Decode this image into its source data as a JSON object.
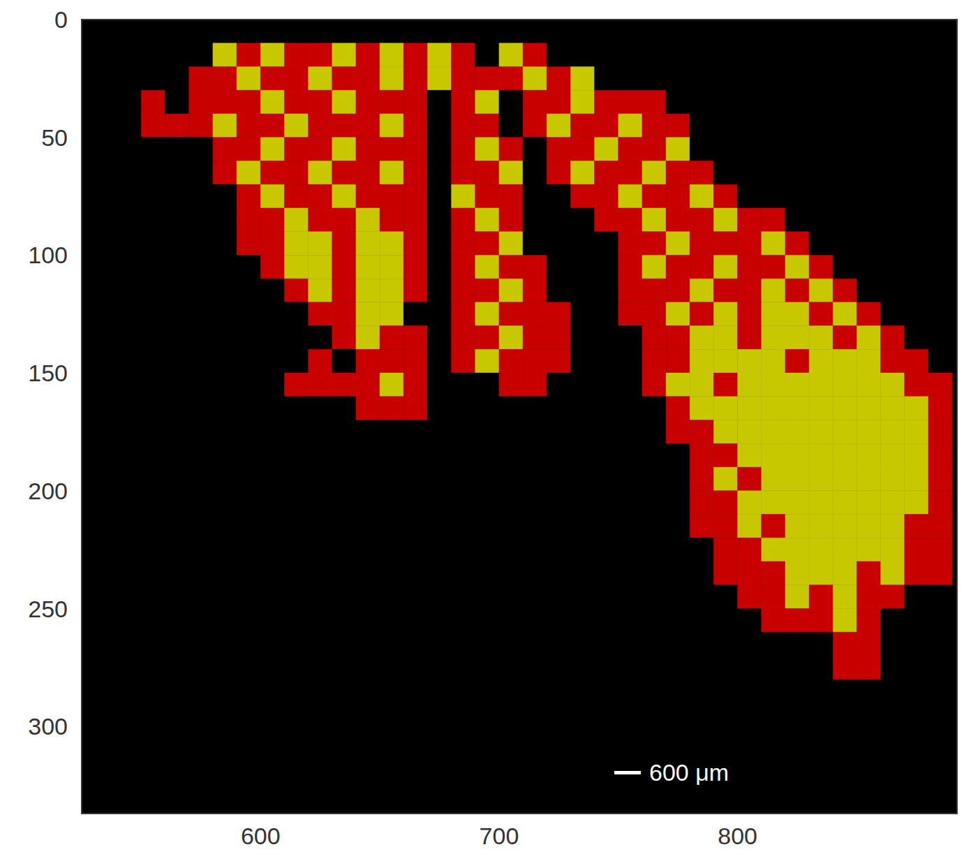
{
  "chart_data": {
    "type": "heatmap",
    "xlim": [
      525,
      892
    ],
    "ylim": [
      337,
      0
    ],
    "xticks": [
      600,
      700,
      800
    ],
    "yticks": [
      0,
      50,
      100,
      150,
      200,
      250,
      300
    ],
    "grid": false,
    "annotations": [
      {
        "text": "600 μm"
      }
    ],
    "colors": [
      "#000000",
      "#c80000",
      "#c8c800"
    ],
    "cell_x": [
      550,
      560,
      570,
      580,
      590,
      600,
      610,
      620,
      630,
      640,
      650,
      660,
      670,
      680,
      690,
      700,
      710,
      720,
      730,
      740,
      750,
      760,
      770,
      780,
      790,
      800,
      810,
      820,
      830,
      840,
      850,
      860,
      870,
      880
    ],
    "cell_y": [
      10,
      20,
      30,
      40,
      50,
      60,
      70,
      80,
      90,
      100,
      110,
      120,
      130,
      140,
      150,
      160,
      170,
      180,
      190,
      200,
      210,
      220,
      230,
      240,
      250,
      260,
      270
    ],
    "cells": [
      [
        0,
        0,
        0,
        2,
        1,
        2,
        1,
        1,
        2,
        1,
        2,
        1,
        2,
        1,
        0,
        2,
        1,
        0,
        0,
        0,
        0,
        0,
        0,
        0,
        0,
        0,
        0,
        0,
        0,
        0,
        0,
        0,
        0,
        0
      ],
      [
        0,
        0,
        1,
        1,
        2,
        1,
        1,
        2,
        1,
        1,
        2,
        1,
        2,
        1,
        1,
        1,
        2,
        1,
        2,
        0,
        0,
        0,
        0,
        0,
        0,
        0,
        0,
        0,
        0,
        0,
        0,
        0,
        0,
        0
      ],
      [
        1,
        0,
        1,
        1,
        1,
        2,
        1,
        1,
        2,
        1,
        1,
        1,
        0,
        1,
        2,
        0,
        1,
        1,
        2,
        1,
        1,
        1,
        0,
        0,
        0,
        0,
        0,
        0,
        0,
        0,
        0,
        0,
        0,
        0
      ],
      [
        1,
        1,
        1,
        2,
        1,
        1,
        2,
        1,
        1,
        1,
        2,
        1,
        0,
        1,
        1,
        0,
        1,
        2,
        1,
        1,
        2,
        1,
        1,
        0,
        0,
        0,
        0,
        0,
        0,
        0,
        0,
        0,
        0,
        0
      ],
      [
        0,
        0,
        0,
        1,
        1,
        2,
        1,
        1,
        2,
        1,
        1,
        1,
        0,
        1,
        2,
        1,
        0,
        1,
        1,
        2,
        1,
        1,
        2,
        0,
        0,
        0,
        0,
        0,
        0,
        0,
        0,
        0,
        0,
        0
      ],
      [
        0,
        0,
        0,
        1,
        2,
        1,
        1,
        2,
        1,
        1,
        2,
        1,
        0,
        1,
        1,
        2,
        0,
        1,
        2,
        1,
        1,
        2,
        1,
        1,
        0,
        0,
        0,
        0,
        0,
        0,
        0,
        0,
        0,
        0
      ],
      [
        0,
        0,
        0,
        0,
        1,
        2,
        1,
        1,
        2,
        1,
        1,
        1,
        0,
        2,
        1,
        1,
        0,
        0,
        1,
        1,
        2,
        1,
        1,
        2,
        1,
        0,
        0,
        0,
        0,
        0,
        0,
        0,
        0,
        0
      ],
      [
        0,
        0,
        0,
        0,
        1,
        1,
        2,
        1,
        1,
        2,
        1,
        1,
        0,
        1,
        2,
        1,
        0,
        0,
        0,
        1,
        1,
        2,
        1,
        1,
        2,
        1,
        1,
        0,
        0,
        0,
        0,
        0,
        0,
        0
      ],
      [
        0,
        0,
        0,
        0,
        1,
        1,
        2,
        2,
        1,
        2,
        2,
        1,
        0,
        1,
        1,
        2,
        0,
        0,
        0,
        0,
        1,
        1,
        2,
        1,
        1,
        1,
        2,
        1,
        0,
        0,
        0,
        0,
        0,
        0
      ],
      [
        0,
        0,
        0,
        0,
        0,
        1,
        2,
        2,
        1,
        2,
        2,
        1,
        0,
        1,
        2,
        1,
        1,
        0,
        0,
        0,
        1,
        2,
        1,
        1,
        2,
        1,
        1,
        2,
        1,
        0,
        0,
        0,
        0,
        0
      ],
      [
        0,
        0,
        0,
        0,
        0,
        0,
        1,
        2,
        1,
        2,
        2,
        1,
        0,
        1,
        1,
        2,
        1,
        0,
        0,
        0,
        1,
        1,
        1,
        2,
        1,
        1,
        2,
        1,
        2,
        1,
        0,
        0,
        0,
        0
      ],
      [
        0,
        0,
        0,
        0,
        0,
        0,
        0,
        1,
        1,
        2,
        2,
        0,
        0,
        1,
        2,
        1,
        1,
        1,
        0,
        0,
        1,
        1,
        2,
        1,
        2,
        1,
        2,
        2,
        1,
        2,
        1,
        0,
        0,
        0
      ],
      [
        0,
        0,
        0,
        0,
        0,
        0,
        0,
        0,
        1,
        2,
        1,
        1,
        0,
        1,
        1,
        2,
        1,
        1,
        0,
        0,
        0,
        1,
        1,
        2,
        2,
        1,
        2,
        2,
        2,
        1,
        2,
        1,
        0,
        0
      ],
      [
        0,
        0,
        0,
        0,
        0,
        0,
        0,
        1,
        0,
        1,
        1,
        1,
        0,
        1,
        2,
        1,
        1,
        1,
        0,
        0,
        0,
        1,
        1,
        2,
        2,
        2,
        2,
        1,
        2,
        2,
        2,
        1,
        1,
        0
      ],
      [
        0,
        0,
        0,
        0,
        0,
        0,
        1,
        1,
        1,
        1,
        2,
        1,
        0,
        0,
        0,
        1,
        1,
        0,
        0,
        0,
        0,
        1,
        2,
        2,
        1,
        2,
        2,
        2,
        2,
        2,
        2,
        2,
        1,
        1
      ],
      [
        0,
        0,
        0,
        0,
        0,
        0,
        0,
        0,
        0,
        1,
        1,
        1,
        0,
        0,
        0,
        0,
        0,
        0,
        0,
        0,
        0,
        0,
        1,
        2,
        2,
        2,
        2,
        2,
        2,
        2,
        2,
        2,
        2,
        1
      ],
      [
        0,
        0,
        0,
        0,
        0,
        0,
        0,
        0,
        0,
        0,
        0,
        0,
        0,
        0,
        0,
        0,
        0,
        0,
        0,
        0,
        0,
        0,
        1,
        1,
        2,
        2,
        2,
        2,
        2,
        2,
        2,
        2,
        2,
        1
      ],
      [
        0,
        0,
        0,
        0,
        0,
        0,
        0,
        0,
        0,
        0,
        0,
        0,
        0,
        0,
        0,
        0,
        0,
        0,
        0,
        0,
        0,
        0,
        0,
        1,
        1,
        2,
        2,
        2,
        2,
        2,
        2,
        2,
        2,
        1
      ],
      [
        0,
        0,
        0,
        0,
        0,
        0,
        0,
        0,
        0,
        0,
        0,
        0,
        0,
        0,
        0,
        0,
        0,
        0,
        0,
        0,
        0,
        0,
        0,
        1,
        2,
        1,
        2,
        2,
        2,
        2,
        2,
        2,
        2,
        1
      ],
      [
        0,
        0,
        0,
        0,
        0,
        0,
        0,
        0,
        0,
        0,
        0,
        0,
        0,
        0,
        0,
        0,
        0,
        0,
        0,
        0,
        0,
        0,
        0,
        1,
        1,
        2,
        2,
        2,
        2,
        2,
        2,
        2,
        2,
        1
      ],
      [
        0,
        0,
        0,
        0,
        0,
        0,
        0,
        0,
        0,
        0,
        0,
        0,
        0,
        0,
        0,
        0,
        0,
        0,
        0,
        0,
        0,
        0,
        0,
        1,
        1,
        2,
        1,
        2,
        2,
        2,
        2,
        2,
        1,
        1
      ],
      [
        0,
        0,
        0,
        0,
        0,
        0,
        0,
        0,
        0,
        0,
        0,
        0,
        0,
        0,
        0,
        0,
        0,
        0,
        0,
        0,
        0,
        0,
        0,
        0,
        1,
        1,
        2,
        2,
        2,
        2,
        2,
        2,
        1,
        1
      ],
      [
        0,
        0,
        0,
        0,
        0,
        0,
        0,
        0,
        0,
        0,
        0,
        0,
        0,
        0,
        0,
        0,
        0,
        0,
        0,
        0,
        0,
        0,
        0,
        0,
        1,
        1,
        1,
        2,
        2,
        2,
        1,
        2,
        1,
        1
      ],
      [
        0,
        0,
        0,
        0,
        0,
        0,
        0,
        0,
        0,
        0,
        0,
        0,
        0,
        0,
        0,
        0,
        0,
        0,
        0,
        0,
        0,
        0,
        0,
        0,
        0,
        1,
        1,
        2,
        1,
        2,
        1,
        1,
        0,
        0
      ],
      [
        0,
        0,
        0,
        0,
        0,
        0,
        0,
        0,
        0,
        0,
        0,
        0,
        0,
        0,
        0,
        0,
        0,
        0,
        0,
        0,
        0,
        0,
        0,
        0,
        0,
        0,
        1,
        1,
        1,
        2,
        1,
        0,
        0,
        0
      ],
      [
        0,
        0,
        0,
        0,
        0,
        0,
        0,
        0,
        0,
        0,
        0,
        0,
        0,
        0,
        0,
        0,
        0,
        0,
        0,
        0,
        0,
        0,
        0,
        0,
        0,
        0,
        0,
        0,
        0,
        1,
        1,
        0,
        0,
        0
      ],
      [
        0,
        0,
        0,
        0,
        0,
        0,
        0,
        0,
        0,
        0,
        0,
        0,
        0,
        0,
        0,
        0,
        0,
        0,
        0,
        0,
        0,
        0,
        0,
        0,
        0,
        0,
        0,
        0,
        0,
        1,
        1,
        0,
        0,
        0
      ]
    ]
  }
}
